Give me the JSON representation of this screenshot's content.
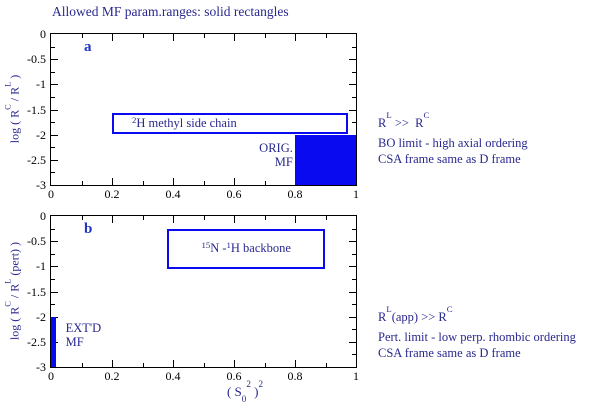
{
  "title": "Allowed MF param.ranges: solid rectangles",
  "colors": {
    "region_blue": "#0a0af0",
    "text_navy": "#28288f",
    "panel_letter_blue": "#2233c8",
    "axis_black": "#000000"
  },
  "xaxis_title": "(S_0^2)^2",
  "xaxis_title_html": "( S<sub>0</sub><sup>2</sup> )<sup>2</sup>",
  "chart_data": [
    {
      "type": "area",
      "panel": "a",
      "title": "",
      "xlabel": "",
      "ylabel": "log ( R^C / R^L )",
      "ylabel_html": "log ( R<sup>C</sup> / R<sup>L</sup> )",
      "xlim": [
        0,
        1
      ],
      "ylim": [
        -3,
        0
      ],
      "xticks": [
        0,
        0.2,
        0.4,
        0.6,
        0.8,
        1
      ],
      "xtick_labels": [
        "0",
        "0.2",
        "0.4",
        "0.6",
        "0.8",
        "1"
      ],
      "minor_xticks": [
        0.1,
        0.3,
        0.5,
        0.7,
        0.9
      ],
      "yticks": [
        0,
        -0.5,
        -1,
        -1.5,
        -2,
        -2.5,
        -3
      ],
      "ytick_labels": [
        "0",
        "-0.5",
        "-1",
        "-1.5",
        "-2",
        "-2.5",
        "-3"
      ],
      "minor_yticks": [
        -0.25,
        -0.75,
        -1.25,
        -1.75,
        -2.25,
        -2.75
      ],
      "grid": false,
      "regions": [
        {
          "name": "region-2h-methyl-side-chain",
          "style": "outline",
          "x": [
            0.2,
            0.973
          ],
          "y": [
            -1.98,
            -1.56
          ],
          "label": "2H methyl side chain",
          "label_html": "<sup>2</sup>H methyl side chain",
          "label_align": "left"
        },
        {
          "name": "region-orig-mf",
          "style": "filled",
          "x": [
            0.8,
            1.0
          ],
          "y": [
            -3,
            -2
          ],
          "label": "",
          "label_html": "",
          "label_align": "center"
        }
      ],
      "annotations": [
        {
          "name": "orig-mf-label",
          "text": "ORIG. MF",
          "html": "ORIG.<br>MF",
          "x": 0.793,
          "y": -2.12,
          "align": "right"
        }
      ],
      "side_text": [
        "R^L >> R^C",
        "BO limit - high axial ordering",
        "CSA frame same as D frame"
      ],
      "side_text_html": [
        "R<sup>L</sup> >> &nbsp;R<sup>C</sup>",
        "BO limit - high axial ordering",
        "CSA frame same as D frame"
      ]
    },
    {
      "type": "area",
      "panel": "b",
      "title": "",
      "xlabel": "(S_0^2)^2",
      "ylabel": "log ( R^C / R^L (pert) )",
      "ylabel_html": "log ( R<sup>C</sup> / R<sup>L</sup> (pert) )",
      "xlim": [
        0,
        1
      ],
      "ylim": [
        -3,
        0
      ],
      "xticks": [
        0,
        0.2,
        0.4,
        0.6,
        0.8,
        1
      ],
      "xtick_labels": [
        "0",
        "0.2",
        "0.4",
        "0.6",
        "0.8",
        "1"
      ],
      "minor_xticks": [
        0.1,
        0.3,
        0.5,
        0.7,
        0.9
      ],
      "yticks": [
        0,
        -0.5,
        -1,
        -1.5,
        -2,
        -2.5,
        -3
      ],
      "ytick_labels": [
        "0",
        "-0.5",
        "-1",
        "-1.5",
        "-2",
        "-2.5",
        "-3"
      ],
      "minor_yticks": [
        -0.25,
        -0.75,
        -1.25,
        -1.75,
        -2.25,
        -2.75
      ],
      "grid": false,
      "regions": [
        {
          "name": "region-15n-1h-backbone",
          "style": "outline",
          "x": [
            0.38,
            0.9
          ],
          "y": [
            -1.05,
            -0.25
          ],
          "label": "15N - 1H backbone",
          "label_html": "<sup>15</sup>N - <sup>1</sup>H backbone",
          "label_align": "center"
        },
        {
          "name": "region-extd-mf",
          "style": "filled",
          "x": [
            0,
            0.016
          ],
          "y": [
            -3,
            -2
          ],
          "label": "",
          "label_html": "",
          "label_align": "center"
        }
      ],
      "annotations": [
        {
          "name": "extd-mf-label",
          "text": "EXT'D MF",
          "html": "EXT'D<br>MF",
          "x": 0.048,
          "y": -2.08,
          "align": "left"
        }
      ],
      "side_text": [
        "R^L(app) >> R^C",
        "Pert. limit - low perp. rhombic ordering",
        "CSA frame same as D frame"
      ],
      "side_text_html": [
        "R<sup>L</sup>(app) >> R<sup>C</sup>",
        "Pert. limit - low perp. rhombic ordering",
        "CSA frame same as D frame"
      ]
    }
  ]
}
